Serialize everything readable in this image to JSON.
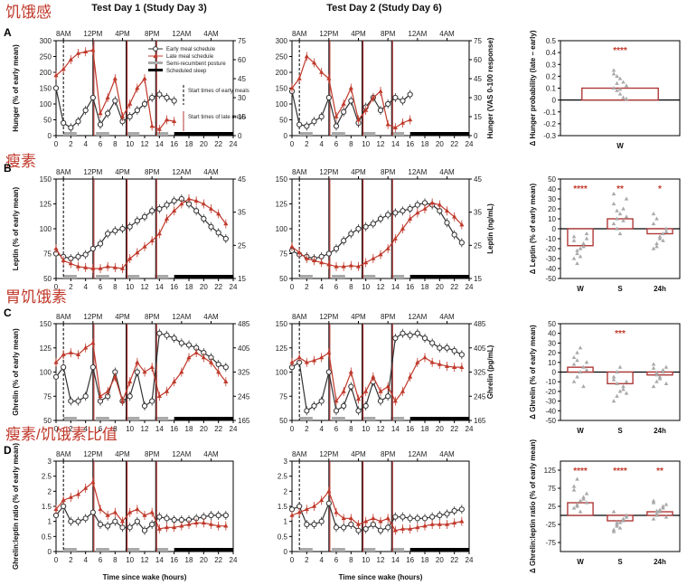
{
  "figure": {
    "headers": [
      "Test Day 1 (Study Day 3)",
      "Test Day 2 (Study Day 6)"
    ],
    "clock_labels": [
      "8AM",
      "12PM",
      "4PM",
      "8PM",
      "12AM",
      "4AM"
    ],
    "xlabel": "Time since wake (hours)",
    "legend": {
      "early": "Early meal schedule",
      "late": "Late meal schedule",
      "semi": "Semi-recumbent posture",
      "sleep": "Scheduled sleep",
      "start_early": "Start times of early meals",
      "start_late": "Start times of late meals"
    },
    "colors": {
      "early": "#333333",
      "late": "#c0392b",
      "semi": "#aaaaaa",
      "sleep": "#000000",
      "bar_edge": "#b03a3a",
      "tri": "#a9a9a9"
    },
    "markers": {
      "early_meals": [
        1,
        5,
        9.5,
        13.5
      ],
      "late_meals": [
        5,
        9.5,
        13.5
      ]
    },
    "panels": [
      {
        "id": "A",
        "cn": "饥饿感",
        "ylabel": "Hunger (% of early mean)",
        "ylim": [
          0,
          300
        ],
        "yticks": [
          0,
          50,
          100,
          150,
          200,
          250,
          300
        ],
        "ylabel_r": "Hunger (VAS 0-100 response)",
        "rticks": [
          "0",
          "15",
          "30",
          "45",
          "60",
          "75"
        ]
      },
      {
        "id": "B",
        "cn": "瘦素",
        "ylabel": "Leptin (% of early mean)",
        "ylim": [
          50,
          150
        ],
        "yticks": [
          50,
          75,
          100,
          125,
          150
        ],
        "ylabel_r": "Leptin (ng/mL)",
        "rticks": [
          "15",
          "25",
          "35",
          "45"
        ]
      },
      {
        "id": "C",
        "cn": "胃饥饿素",
        "ylabel": "Ghrelin (% of early mean)",
        "ylim": [
          50,
          150
        ],
        "yticks": [
          50,
          75,
          100,
          125,
          150
        ],
        "ylabel_r": "Ghrelin (pg/mL)",
        "rticks": [
          "165",
          "245",
          "325",
          "405",
          "485"
        ]
      },
      {
        "id": "D",
        "cn": "瘦素/饥饿素比值",
        "ylabel": "Ghrelin:leptin ratio (% of early mean)",
        "ylim": [
          0,
          3
        ],
        "yticks": [
          0,
          0.5,
          1,
          1.5,
          2,
          2.5,
          3
        ],
        "ylabel_r": "",
        "rticks": []
      }
    ]
  },
  "chart_data": [
    {
      "type": "line",
      "panel": "A",
      "day": 1,
      "xlim": [
        0,
        24
      ],
      "ylim": [
        0,
        300
      ],
      "x": [
        0,
        1,
        2,
        3,
        4,
        5,
        6,
        7,
        8,
        9,
        10,
        11,
        12,
        13,
        14,
        15,
        16
      ],
      "series": [
        {
          "name": "Early meal schedule",
          "values": [
            150,
            40,
            25,
            45,
            80,
            120,
            35,
            70,
            110,
            45,
            60,
            80,
            100,
            120,
            130,
            120,
            110
          ]
        },
        {
          "name": "Late meal schedule",
          "values": [
            190,
            210,
            240,
            260,
            265,
            270,
            70,
            120,
            180,
            60,
            100,
            150,
            180,
            30,
            20,
            50,
            45
          ]
        }
      ]
    },
    {
      "type": "line",
      "panel": "A",
      "day": 2,
      "xlim": [
        0,
        24
      ],
      "ylim": [
        0,
        300
      ],
      "x": [
        0,
        1,
        2,
        3,
        4,
        5,
        6,
        7,
        8,
        9,
        10,
        11,
        12,
        13,
        14,
        15,
        16
      ],
      "series": [
        {
          "name": "Early meal schedule",
          "values": [
            140,
            35,
            30,
            45,
            60,
            120,
            30,
            75,
            110,
            40,
            90,
            120,
            80,
            100,
            120,
            110,
            130
          ]
        },
        {
          "name": "Late meal schedule",
          "values": [
            150,
            180,
            250,
            230,
            200,
            180,
            60,
            100,
            150,
            50,
            80,
            120,
            140,
            35,
            25,
            40,
            50
          ]
        }
      ]
    },
    {
      "type": "bar",
      "panel": "A",
      "categories": [
        "W"
      ],
      "values": [
        0.1
      ],
      "ylim": [
        -0.3,
        0.5
      ],
      "yticks": [
        -0.3,
        -0.2,
        -0.1,
        0,
        0.1,
        0.2,
        0.3,
        0.4,
        0.5
      ],
      "ylabel": "Δ Hunger probability (late – early)",
      "stars": [
        "****"
      ],
      "points": [
        [
          0.25,
          0.2,
          0.18,
          0.15,
          0.12,
          0.1,
          0.08,
          0.05,
          0.02,
          0.01,
          0.22,
          0.14,
          0.09
        ]
      ]
    },
    {
      "type": "line",
      "panel": "B",
      "day": 1,
      "xlim": [
        0,
        24
      ],
      "ylim": [
        50,
        150
      ],
      "x": [
        0,
        1,
        2,
        3,
        4,
        5,
        6,
        7,
        8,
        9,
        10,
        11,
        12,
        13,
        14,
        15,
        16,
        17,
        18,
        19,
        20,
        21,
        22,
        23
      ],
      "series": [
        {
          "name": "Early meal schedule",
          "values": [
            75,
            72,
            70,
            72,
            74,
            80,
            85,
            95,
            98,
            100,
            102,
            108,
            112,
            118,
            120,
            124,
            128,
            130,
            125,
            118,
            110,
            102,
            96,
            90
          ]
        },
        {
          "name": "Late meal schedule",
          "values": [
            80,
            68,
            65,
            62,
            61,
            60,
            60,
            62,
            61,
            60,
            70,
            76,
            82,
            88,
            95,
            110,
            118,
            125,
            130,
            128,
            125,
            120,
            115,
            105
          ]
        }
      ]
    },
    {
      "type": "line",
      "panel": "B",
      "day": 2,
      "xlim": [
        0,
        24
      ],
      "ylim": [
        50,
        150
      ],
      "x": [
        0,
        1,
        2,
        3,
        4,
        5,
        6,
        7,
        8,
        9,
        10,
        11,
        12,
        13,
        14,
        15,
        16,
        17,
        18,
        19,
        20,
        21,
        22,
        23
      ],
      "series": [
        {
          "name": "Early meal schedule",
          "values": [
            78,
            74,
            72,
            70,
            72,
            75,
            80,
            88,
            95,
            100,
            102,
            105,
            110,
            114,
            116,
            118,
            120,
            124,
            126,
            124,
            118,
            106,
            94,
            86
          ]
        },
        {
          "name": "Late meal schedule",
          "values": [
            82,
            76,
            70,
            68,
            66,
            64,
            62,
            62,
            63,
            62,
            66,
            70,
            74,
            80,
            90,
            100,
            110,
            116,
            120,
            126,
            124,
            118,
            112,
            104
          ]
        }
      ]
    },
    {
      "type": "bar",
      "panel": "B",
      "categories": [
        "W",
        "S",
        "24h"
      ],
      "values": [
        -17,
        10,
        -5
      ],
      "ylim": [
        -50,
        50
      ],
      "yticks": [
        -50,
        -40,
        -30,
        -20,
        -10,
        0,
        10,
        20,
        30,
        40,
        50
      ],
      "ylabel": "Δ Leptin (% of early mean)",
      "stars": [
        "****",
        "**",
        "*"
      ],
      "points": [
        [
          -30,
          -25,
          -20,
          -15,
          -10,
          -8,
          -35,
          -28,
          -18,
          -5,
          -12,
          -22
        ],
        [
          5,
          10,
          15,
          20,
          30,
          35,
          0,
          -5,
          8,
          12,
          25,
          18
        ],
        [
          -20,
          -15,
          -10,
          -5,
          0,
          5,
          10,
          -8,
          -12,
          -3,
          15,
          -18
        ]
      ]
    },
    {
      "type": "line",
      "panel": "C",
      "day": 1,
      "xlim": [
        0,
        24
      ],
      "ylim": [
        50,
        150
      ],
      "x": [
        0,
        1,
        2,
        3,
        4,
        5,
        6,
        7,
        8,
        9,
        10,
        11,
        12,
        13,
        14,
        15,
        16,
        17,
        18,
        19,
        20,
        21,
        22,
        23
      ],
      "series": [
        {
          "name": "Early meal schedule",
          "values": [
            95,
            105,
            70,
            70,
            75,
            105,
            70,
            75,
            100,
            70,
            75,
            100,
            65,
            70,
            140,
            138,
            135,
            130,
            128,
            125,
            120,
            115,
            108,
            105
          ]
        },
        {
          "name": "Late meal schedule",
          "values": [
            110,
            118,
            120,
            118,
            125,
            130,
            75,
            80,
            95,
            70,
            90,
            110,
            100,
            105,
            75,
            80,
            90,
            100,
            115,
            120,
            115,
            110,
            100,
            90
          ]
        }
      ]
    },
    {
      "type": "line",
      "panel": "C",
      "day": 2,
      "xlim": [
        0,
        24
      ],
      "ylim": [
        50,
        150
      ],
      "x": [
        0,
        1,
        2,
        3,
        4,
        5,
        6,
        7,
        8,
        9,
        10,
        11,
        12,
        13,
        14,
        15,
        16,
        17,
        18,
        19,
        20,
        21,
        22,
        23
      ],
      "series": [
        {
          "name": "Early meal schedule",
          "values": [
            105,
            110,
            60,
            65,
            70,
            100,
            60,
            65,
            85,
            60,
            65,
            90,
            70,
            75,
            135,
            140,
            138,
            140,
            135,
            130,
            125,
            125,
            122,
            118
          ]
        },
        {
          "name": "Late meal schedule",
          "values": [
            110,
            115,
            110,
            112,
            115,
            120,
            70,
            80,
            100,
            72,
            80,
            95,
            80,
            85,
            70,
            80,
            95,
            110,
            115,
            110,
            108,
            106,
            105,
            105
          ]
        }
      ]
    },
    {
      "type": "bar",
      "panel": "C",
      "categories": [
        "W",
        "S",
        "24h"
      ],
      "values": [
        5,
        -12,
        -3
      ],
      "ylim": [
        -50,
        50
      ],
      "yticks": [
        -50,
        -40,
        -30,
        -20,
        -10,
        0,
        10,
        20,
        30,
        40,
        50
      ],
      "ylabel": "Δ Ghrelin (% of early mean)",
      "stars": [
        "",
        "***",
        ""
      ],
      "points": [
        [
          -10,
          -5,
          0,
          5,
          10,
          15,
          20,
          25,
          -15,
          2,
          8,
          12
        ],
        [
          -30,
          -25,
          -20,
          -15,
          -10,
          -5,
          0,
          5,
          -18,
          -22,
          -8,
          -12
        ],
        [
          -15,
          -10,
          -5,
          0,
          5,
          8,
          -3,
          -7,
          2,
          -12,
          4,
          -1
        ]
      ]
    },
    {
      "type": "line",
      "panel": "D",
      "day": 1,
      "xlim": [
        0,
        24
      ],
      "ylim": [
        0,
        3
      ],
      "x": [
        0,
        1,
        2,
        3,
        4,
        5,
        6,
        7,
        8,
        9,
        10,
        11,
        12,
        13,
        14,
        15,
        16,
        17,
        18,
        19,
        20,
        21,
        22,
        23
      ],
      "series": [
        {
          "name": "Early meal schedule",
          "values": [
            1.2,
            1.5,
            1.0,
            1.0,
            1.1,
            1.3,
            0.9,
            0.85,
            1.0,
            0.8,
            0.8,
            1.0,
            0.7,
            0.9,
            1.15,
            1.1,
            1.05,
            1.05,
            1.05,
            1.1,
            1.15,
            1.2,
            1.2,
            1.2
          ]
        },
        {
          "name": "Late meal schedule",
          "values": [
            1.4,
            1.7,
            1.8,
            1.9,
            2.1,
            2.3,
            1.4,
            1.2,
            1.3,
            1.0,
            1.3,
            1.4,
            1.2,
            1.3,
            0.75,
            0.8,
            0.8,
            0.85,
            0.9,
            0.95,
            0.95,
            0.9,
            0.85,
            0.85
          ]
        }
      ]
    },
    {
      "type": "line",
      "panel": "D",
      "day": 2,
      "xlim": [
        0,
        24
      ],
      "ylim": [
        0,
        3
      ],
      "x": [
        0,
        1,
        2,
        3,
        4,
        5,
        6,
        7,
        8,
        9,
        10,
        11,
        12,
        13,
        14,
        15,
        16,
        17,
        18,
        19,
        20,
        21,
        22,
        23
      ],
      "series": [
        {
          "name": "Early meal schedule",
          "values": [
            1.4,
            1.5,
            0.9,
            0.9,
            1.0,
            1.6,
            0.8,
            0.8,
            0.9,
            0.7,
            0.75,
            0.9,
            0.7,
            0.8,
            1.15,
            1.15,
            1.1,
            1.1,
            1.1,
            1.15,
            1.2,
            1.25,
            1.35,
            1.4
          ]
        },
        {
          "name": "Late meal schedule",
          "values": [
            1.2,
            1.3,
            1.4,
            1.5,
            1.7,
            2.0,
            1.3,
            1.1,
            1.1,
            0.9,
            1.0,
            1.1,
            1.0,
            1.1,
            0.7,
            0.75,
            0.75,
            0.8,
            0.85,
            0.9,
            0.9,
            0.9,
            0.95,
            1.0
          ]
        }
      ]
    },
    {
      "type": "bar",
      "panel": "D",
      "categories": [
        "W",
        "S",
        "24h"
      ],
      "values": [
        35,
        -15,
        10
      ],
      "ylim": [
        -100,
        150
      ],
      "yticks": [
        -75,
        -25,
        25,
        75,
        125
      ],
      "ylabel": "Δ Ghrelin:leptin ratio (% of early mean)",
      "stars": [
        "****",
        "****",
        "**"
      ],
      "points": [
        [
          20,
          30,
          40,
          50,
          60,
          80,
          100,
          10,
          45,
          35,
          70,
          25
        ],
        [
          -40,
          -30,
          -20,
          -10,
          0,
          10,
          -25,
          -35,
          -15,
          -5,
          -45,
          -20
        ],
        [
          -10,
          0,
          10,
          20,
          30,
          40,
          5,
          15,
          25,
          -5,
          35,
          12
        ]
      ]
    }
  ]
}
